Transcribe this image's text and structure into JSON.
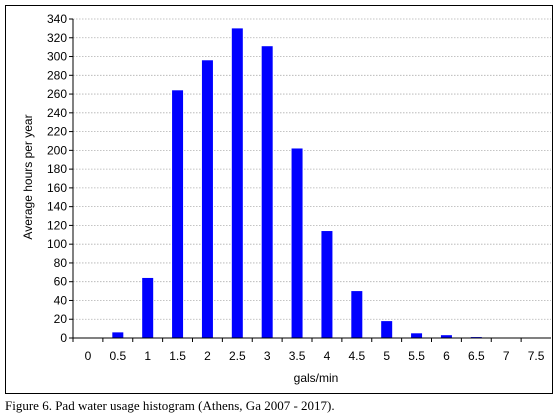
{
  "caption": "Figure 6.  Pad water usage histogram (Athens, Ga 2007 - 2017).",
  "chart_data": {
    "type": "bar",
    "title": "",
    "xlabel": "gals/min",
    "ylabel": "Average hours per year",
    "categories": [
      "0",
      "0.5",
      "1",
      "1.5",
      "2",
      "2.5",
      "3",
      "3.5",
      "4",
      "4.5",
      "5",
      "5.5",
      "6",
      "6.5",
      "7",
      "7.5"
    ],
    "values": [
      0,
      6,
      64,
      264,
      296,
      330,
      311,
      202,
      114,
      50,
      18,
      5,
      3,
      1,
      0.5,
      0.5
    ],
    "ylim": [
      0,
      340
    ],
    "yticks": [
      "0",
      "20",
      "40",
      "60",
      "80",
      "100",
      "120",
      "140",
      "160",
      "180",
      "200",
      "220",
      "240",
      "260",
      "280",
      "300",
      "320",
      "340"
    ],
    "grid": true,
    "legend": "none",
    "bar_color": "#0000ff",
    "grid_color": "#b0b0b0"
  }
}
